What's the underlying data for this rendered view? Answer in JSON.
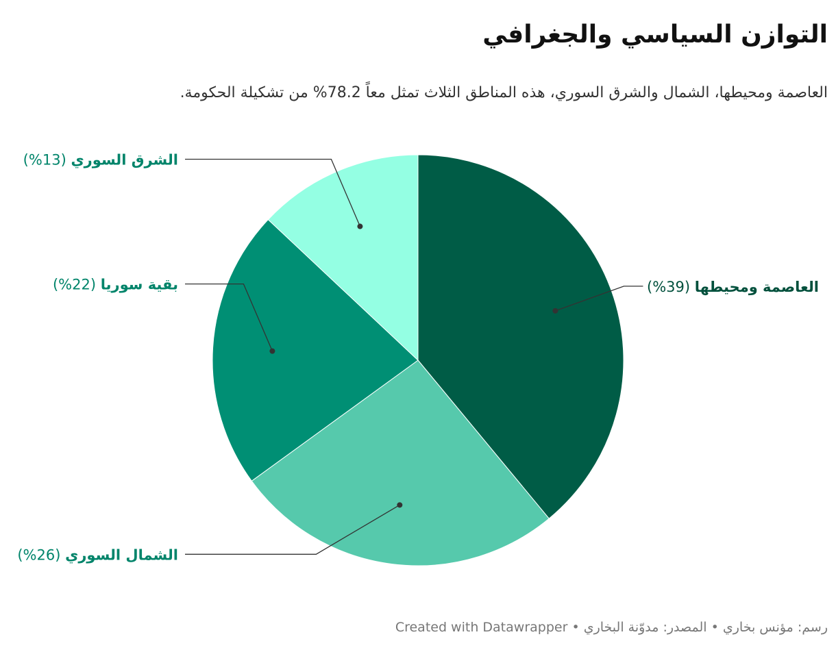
{
  "title": "التوازن السياسي والجغرافي",
  "subtitle": "العاصمة ومحيطها، الشمال والشرق السوري، هذه المناطق الثلاث تمثل معاً 78.2% من تشكيلة الحكومة.",
  "footer": {
    "credit": "رسم: مؤنس بخاري",
    "source": "المصدر: مدوّنة البخاري",
    "tool": "Created with Datawrapper"
  },
  "chart_data": {
    "type": "pie",
    "start_angle_deg": 0,
    "direction": "clockwise",
    "slices": [
      {
        "label": "العاصمة ومحيطها",
        "value": 39,
        "value_label": "(39%)",
        "color": "#005c46",
        "label_color": "#00503c"
      },
      {
        "label": "الشمال السوري",
        "value": 26,
        "value_label": "(26%)",
        "color": "#56c9ac",
        "label_color": "#00846a"
      },
      {
        "label": "بقية سوريا",
        "value": 22,
        "value_label": "(22%)",
        "color": "#008f74",
        "label_color": "#00846a"
      },
      {
        "label": "الشرق السوري",
        "value": 13,
        "value_label": "(13%)",
        "color": "#94ffe3",
        "label_color": "#00846a"
      }
    ]
  }
}
